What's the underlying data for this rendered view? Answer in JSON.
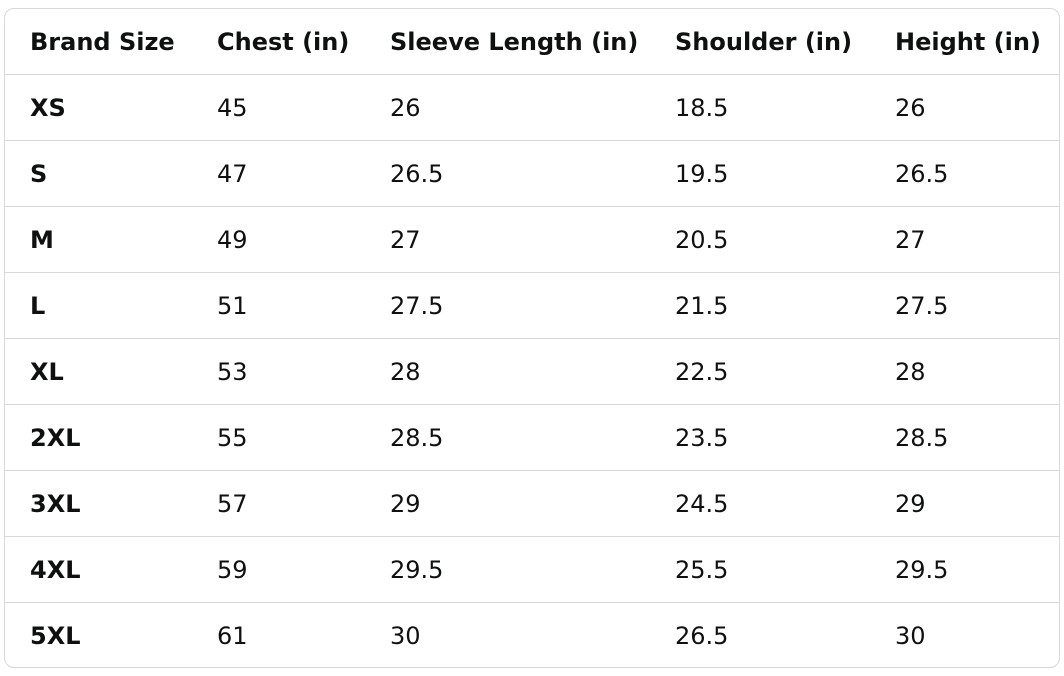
{
  "table": {
    "header": [
      "Brand Size",
      "Chest (in)",
      "Sleeve Length (in)",
      "Shoulder (in)",
      "Height (in)"
    ],
    "rows": [
      [
        "XS",
        45,
        26,
        18.5,
        26
      ],
      [
        "S",
        47,
        26.5,
        19.5,
        26.5
      ],
      [
        "M",
        49,
        27,
        20.5,
        27
      ],
      [
        "L",
        51,
        27.5,
        21.5,
        27.5
      ],
      [
        "XL",
        53,
        28,
        22.5,
        28
      ],
      [
        "2XL",
        55,
        28.5,
        23.5,
        28.5
      ],
      [
        "3XL",
        57,
        29,
        24.5,
        29
      ],
      [
        "4XL",
        59,
        29.5,
        25.5,
        29.5
      ],
      [
        "5XL",
        61,
        30,
        26.5,
        30
      ]
    ]
  }
}
